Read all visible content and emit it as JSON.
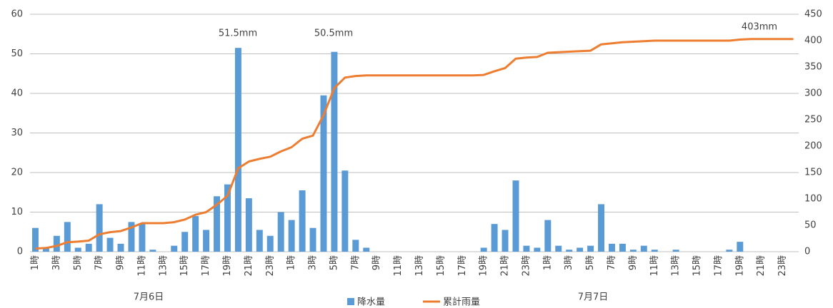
{
  "chart_data": {
    "type": "combo",
    "categories": [
      "1時",
      null,
      "3時",
      null,
      "5時",
      null,
      "7時",
      null,
      "9時",
      null,
      "11時",
      null,
      "13時",
      null,
      "15時",
      null,
      "17時",
      null,
      "19時",
      null,
      "21時",
      null,
      "23時",
      null,
      "1時",
      null,
      "3時",
      null,
      "5時",
      null,
      "7時",
      null,
      "9時",
      null,
      "11時",
      null,
      "13時",
      null,
      "15時",
      null,
      "17時",
      null,
      "19時",
      null,
      "21時",
      null,
      "23時",
      null,
      "1時",
      null,
      "3時",
      null,
      "5時",
      null,
      "7時",
      null,
      "9時",
      null,
      "11時",
      null,
      "13時",
      null,
      "15時",
      null,
      "17時",
      null,
      "19時",
      null,
      "21時",
      null,
      "23時",
      null
    ],
    "x_groups": [
      "7月6日",
      "7月7日"
    ],
    "series": [
      {
        "name": "降水量",
        "type": "bar",
        "color": "#5b9bd5",
        "values": [
          6,
          1,
          4,
          7.5,
          1,
          2,
          12,
          3.5,
          2,
          7.5,
          7,
          0.5,
          0,
          1.5,
          5,
          9,
          5.5,
          14,
          17,
          51.5,
          13.5,
          5.5,
          4,
          10,
          8,
          15.5,
          6,
          39.5,
          50.5,
          20.5,
          3,
          1,
          0,
          0,
          0,
          0,
          0,
          0,
          0,
          0,
          0,
          0,
          1,
          7,
          5.5,
          18,
          1.5,
          1,
          8,
          1.5,
          0.5,
          1,
          1.5,
          12,
          2,
          2,
          0.5,
          1.5,
          0.5,
          0,
          0.5,
          0,
          0,
          0,
          0,
          0.5,
          2.5,
          0,
          0,
          0,
          0,
          0
        ]
      },
      {
        "name": "累計雨量",
        "type": "line",
        "axis": "y2",
        "color": "#ed7d31",
        "values": [
          6,
          7,
          11,
          18,
          19,
          21,
          33,
          37,
          39,
          46,
          54,
          54,
          54,
          56,
          61,
          70,
          75,
          89,
          106,
          158,
          171,
          176,
          180,
          190,
          198,
          214,
          220,
          259,
          310,
          330,
          333,
          334,
          334,
          334,
          334,
          334,
          334,
          334,
          334,
          334,
          334,
          334,
          335,
          342,
          348,
          366,
          368,
          369,
          377,
          378,
          379,
          380,
          381,
          393,
          395,
          397,
          398,
          399,
          400,
          400,
          400,
          400,
          400,
          400,
          400,
          400,
          402,
          403,
          403,
          403,
          403,
          403
        ]
      }
    ],
    "annotations": [
      "51.5mm",
      "50.5mm",
      "403mm"
    ],
    "ylim": [
      0,
      60
    ],
    "yticks": [
      0,
      10,
      20,
      30,
      40,
      50,
      60
    ],
    "y2lim": [
      0,
      450
    ],
    "y2ticks": [
      0,
      50,
      100,
      150,
      200,
      250,
      300,
      350,
      400,
      450
    ],
    "grid": true
  }
}
